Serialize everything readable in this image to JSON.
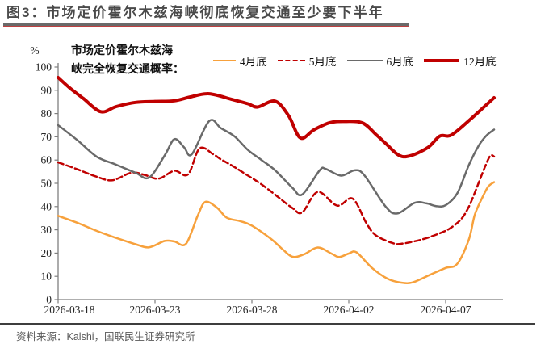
{
  "figure": {
    "title": "图3：市场定价霍尔木兹海峡彻底恢复交通至少要下半年",
    "title_color": "#4A4A4A",
    "accent_red": "#C00000",
    "source_note": "资料来源：Kalshi，国联民生证券研究所"
  },
  "chart_data": {
    "type": "line",
    "title": "市场定价霍尔木兹海峡完全恢复交通概率",
    "inner_label_lines": [
      "市场定价霍尔木兹海",
      "峡完全恢复交通概率："
    ],
    "y_unit": "%",
    "ylim": [
      0,
      100
    ],
    "y_ticks": [
      0,
      10,
      20,
      30,
      40,
      50,
      60,
      70,
      80,
      90,
      100
    ],
    "x_tick_labels": [
      "2026-03-18",
      "2026-03-23",
      "2026-03-28",
      "2026-04-02",
      "2026-04-07"
    ],
    "x_tick_days": [
      0,
      5,
      10,
      15,
      20
    ],
    "x_day_span": 22.5,
    "grid": false,
    "legend_position": "top",
    "axis_color": "#7f7f7f",
    "series": [
      {
        "id": "apr",
        "name": "4月底",
        "color": "#F7A13C",
        "width": 2.5,
        "dash": null,
        "swatch": 28,
        "points": [
          [
            0,
            36
          ],
          [
            1,
            33
          ],
          [
            2,
            29.5
          ],
          [
            3,
            26.5
          ],
          [
            4,
            23.8
          ],
          [
            4.7,
            22.5
          ],
          [
            5.5,
            25.2
          ],
          [
            6,
            25
          ],
          [
            6.6,
            24
          ],
          [
            7.2,
            36
          ],
          [
            7.6,
            42
          ],
          [
            8.2,
            39.5
          ],
          [
            8.7,
            35.2
          ],
          [
            9.4,
            33.7
          ],
          [
            10,
            31.8
          ],
          [
            11,
            26
          ],
          [
            11.6,
            21.5
          ],
          [
            12.1,
            18.4
          ],
          [
            12.7,
            19.5
          ],
          [
            13.4,
            22.4
          ],
          [
            14.1,
            19.8
          ],
          [
            14.5,
            18.3
          ],
          [
            15,
            19.8
          ],
          [
            15.4,
            20.3
          ],
          [
            16.2,
            13.6
          ],
          [
            17,
            9
          ],
          [
            17.7,
            7.3
          ],
          [
            18.3,
            7.4
          ],
          [
            19.2,
            10.7
          ],
          [
            20,
            13.6
          ],
          [
            20.6,
            15.4
          ],
          [
            21.2,
            25.9
          ],
          [
            21.5,
            36.4
          ],
          [
            21.9,
            44
          ],
          [
            22.2,
            48.6
          ],
          [
            22.5,
            50.5
          ]
        ]
      },
      {
        "id": "may",
        "name": "5月底",
        "color": "#C00000",
        "width": 2.5,
        "dash": "7 4",
        "swatch": 34,
        "points": [
          [
            0,
            59
          ],
          [
            1,
            56
          ],
          [
            2,
            52.8
          ],
          [
            2.8,
            51.3
          ],
          [
            3.8,
            54.6
          ],
          [
            4.5,
            53.5
          ],
          [
            5.2,
            52
          ],
          [
            6,
            55.4
          ],
          [
            6.7,
            53.8
          ],
          [
            7.3,
            65
          ],
          [
            8,
            62.5
          ],
          [
            8.4,
            60.3
          ],
          [
            9,
            57.5
          ],
          [
            9.8,
            53.3
          ],
          [
            10.5,
            49.5
          ],
          [
            11.2,
            45.1
          ],
          [
            12.1,
            39.3
          ],
          [
            12.6,
            37.5
          ],
          [
            13.4,
            46.3
          ],
          [
            14.4,
            40.4
          ],
          [
            15.2,
            43.4
          ],
          [
            15.9,
            33
          ],
          [
            16.4,
            27.6
          ],
          [
            17.3,
            24.2
          ],
          [
            17.8,
            24.1
          ],
          [
            18.8,
            25.9
          ],
          [
            19.6,
            28.2
          ],
          [
            20.2,
            30.5
          ],
          [
            20.8,
            34.6
          ],
          [
            21.2,
            40
          ],
          [
            21.6,
            48
          ],
          [
            22,
            56.5
          ],
          [
            22.3,
            61.8
          ],
          [
            22.5,
            61.5
          ]
        ]
      },
      {
        "id": "jun",
        "name": "6月底",
        "color": "#6A6A6A",
        "width": 2.5,
        "dash": null,
        "swatch": 44,
        "points": [
          [
            0,
            75
          ],
          [
            1,
            68.5
          ],
          [
            2,
            61.4
          ],
          [
            3,
            58
          ],
          [
            4,
            54.5
          ],
          [
            4.7,
            52.5
          ],
          [
            5.5,
            62
          ],
          [
            6,
            69
          ],
          [
            6.5,
            65.5
          ],
          [
            6.9,
            62.5
          ],
          [
            7.8,
            76.8
          ],
          [
            8.4,
            73.7
          ],
          [
            9.1,
            70.2
          ],
          [
            9.8,
            64.3
          ],
          [
            10.5,
            60
          ],
          [
            11.2,
            55.6
          ],
          [
            12.1,
            48
          ],
          [
            12.6,
            45.2
          ],
          [
            13.5,
            55.6
          ],
          [
            13.8,
            56.2
          ],
          [
            14.6,
            53.3
          ],
          [
            15.3,
            55.6
          ],
          [
            15.8,
            53.5
          ],
          [
            16.9,
            40
          ],
          [
            17.5,
            37
          ],
          [
            18.4,
            41.6
          ],
          [
            19,
            41.4
          ],
          [
            19.5,
            40.2
          ],
          [
            20,
            40.6
          ],
          [
            20.6,
            45.7
          ],
          [
            21.2,
            57.9
          ],
          [
            21.7,
            66.1
          ],
          [
            22.1,
            70.5
          ],
          [
            22.5,
            73.1
          ]
        ]
      },
      {
        "id": "dec",
        "name": "12月底",
        "color": "#C00000",
        "width": 4,
        "dash": null,
        "swatch": 44,
        "points": [
          [
            0,
            95.5
          ],
          [
            0.6,
            91
          ],
          [
            1.3,
            86.5
          ],
          [
            2.2,
            80.8
          ],
          [
            3,
            83
          ],
          [
            4,
            84.8
          ],
          [
            5,
            85.2
          ],
          [
            6,
            85.5
          ],
          [
            6.9,
            87.3
          ],
          [
            7.8,
            88.5
          ],
          [
            9,
            86
          ],
          [
            9.8,
            84.2
          ],
          [
            10.3,
            82.8
          ],
          [
            11.2,
            85.3
          ],
          [
            11.9,
            79
          ],
          [
            12.5,
            69.5
          ],
          [
            13.2,
            73
          ],
          [
            14,
            76
          ],
          [
            14.7,
            76.6
          ],
          [
            15.7,
            76
          ],
          [
            16.4,
            71
          ],
          [
            16.9,
            67.2
          ],
          [
            17.6,
            62
          ],
          [
            18.2,
            61.9
          ],
          [
            19.1,
            65.5
          ],
          [
            19.7,
            70.3
          ],
          [
            20.3,
            70.8
          ],
          [
            21.3,
            77.7
          ],
          [
            22,
            83
          ],
          [
            22.5,
            86.8
          ]
        ]
      }
    ]
  }
}
